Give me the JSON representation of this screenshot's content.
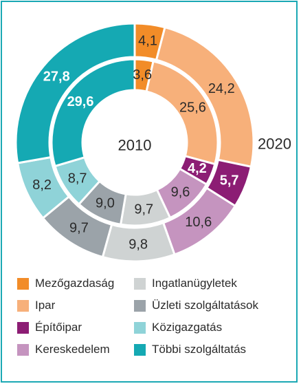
{
  "chart_data": {
    "type": "donut",
    "title": "",
    "rings": [
      {
        "name": "2010",
        "position": "inner",
        "values": [
          3.6,
          25.6,
          4.2,
          9.6,
          9.7,
          9.0,
          8.7,
          29.6
        ],
        "labels": [
          "3,6",
          "25,6",
          "4,2",
          "9,6",
          "9,7",
          "9,0",
          "8,7",
          "29,6"
        ]
      },
      {
        "name": "2020",
        "position": "outer",
        "values": [
          4.1,
          24.2,
          5.7,
          10.6,
          9.8,
          9.7,
          8.2,
          27.8
        ],
        "labels": [
          "4,1",
          "24,2",
          "5,7",
          "10,6",
          "9,8",
          "9,7",
          "8,2",
          "27,8"
        ]
      }
    ],
    "categories": [
      {
        "name": "Mezőgazdaság",
        "color": "#f28c28",
        "label_style": "dark"
      },
      {
        "name": "Ipar",
        "color": "#f7b07a",
        "label_style": "dark"
      },
      {
        "name": "Építőipar",
        "color": "#8c1d74",
        "label_style": "light"
      },
      {
        "name": "Kereskedelem",
        "color": "#c594bf",
        "label_style": "dark"
      },
      {
        "name": "Ingatlanügyletek",
        "color": "#cfd3d3",
        "label_style": "dark"
      },
      {
        "name": "Üzleti szolgáltatások",
        "color": "#9ba3a9",
        "label_style": "dark"
      },
      {
        "name": "Közigazgatás",
        "color": "#8fd3d8",
        "label_style": "dark"
      },
      {
        "name": "Többi szolgáltatás",
        "color": "#15a9b3",
        "label_style": "light"
      }
    ],
    "legend_position": "bottom, two columns"
  },
  "frame_color": "#1aa8b4"
}
